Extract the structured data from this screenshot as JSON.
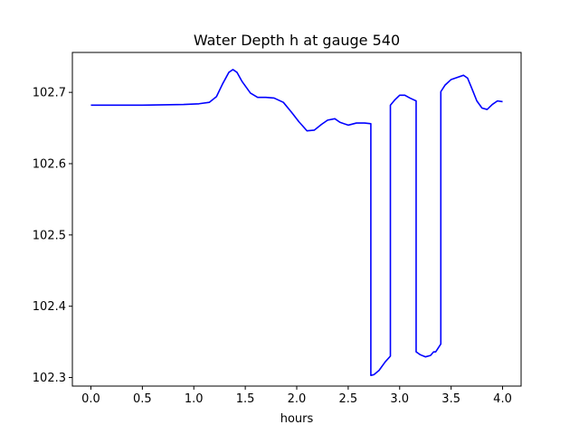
{
  "chart_data": {
    "type": "line",
    "title": "Water Depth h at gauge 540",
    "xlabel": "hours",
    "ylabel": "",
    "xlim": [
      -0.18,
      4.18
    ],
    "ylim": [
      102.288,
      102.756
    ],
    "xticks": [
      0.0,
      0.5,
      1.0,
      1.5,
      2.0,
      2.5,
      3.0,
      3.5,
      4.0
    ],
    "xtick_labels": [
      "0.0",
      "0.5",
      "1.0",
      "1.5",
      "2.0",
      "2.5",
      "3.0",
      "3.5",
      "4.0"
    ],
    "yticks": [
      102.3,
      102.4,
      102.5,
      102.6,
      102.7
    ],
    "ytick_labels": [
      "102.3",
      "102.4",
      "102.5",
      "102.6",
      "102.7"
    ],
    "grid": false,
    "legend": "none",
    "series": [
      {
        "color": "#0000ff",
        "x": [
          0.0,
          0.5,
          0.9,
          1.05,
          1.15,
          1.22,
          1.28,
          1.34,
          1.38,
          1.42,
          1.47,
          1.55,
          1.62,
          1.7,
          1.78,
          1.87,
          1.95,
          2.02,
          2.1,
          2.17,
          2.24,
          2.3,
          2.37,
          2.42,
          2.5,
          2.58,
          2.66,
          2.72,
          2.72,
          2.75,
          2.8,
          2.86,
          2.91,
          2.91,
          2.95,
          3.0,
          3.05,
          3.1,
          3.16,
          3.16,
          3.2,
          3.25,
          3.3,
          3.33,
          3.35,
          3.4,
          3.4,
          3.44,
          3.5,
          3.56,
          3.62,
          3.66,
          3.7,
          3.75,
          3.8,
          3.85,
          3.9,
          3.95,
          4.0
        ],
        "y": [
          102.682,
          102.682,
          102.683,
          102.684,
          102.686,
          102.694,
          102.712,
          102.728,
          102.732,
          102.728,
          102.715,
          102.699,
          102.693,
          102.693,
          102.692,
          102.686,
          102.672,
          102.659,
          102.646,
          102.647,
          102.655,
          102.661,
          102.663,
          102.658,
          102.654,
          102.657,
          102.657,
          102.656,
          102.303,
          102.304,
          102.31,
          102.322,
          102.33,
          102.682,
          102.689,
          102.696,
          102.696,
          102.692,
          102.688,
          102.336,
          102.332,
          102.329,
          102.331,
          102.336,
          102.336,
          102.347,
          102.701,
          102.71,
          102.718,
          102.721,
          102.724,
          102.72,
          102.706,
          102.688,
          102.678,
          102.676,
          102.683,
          102.688,
          102.687
        ]
      }
    ]
  }
}
